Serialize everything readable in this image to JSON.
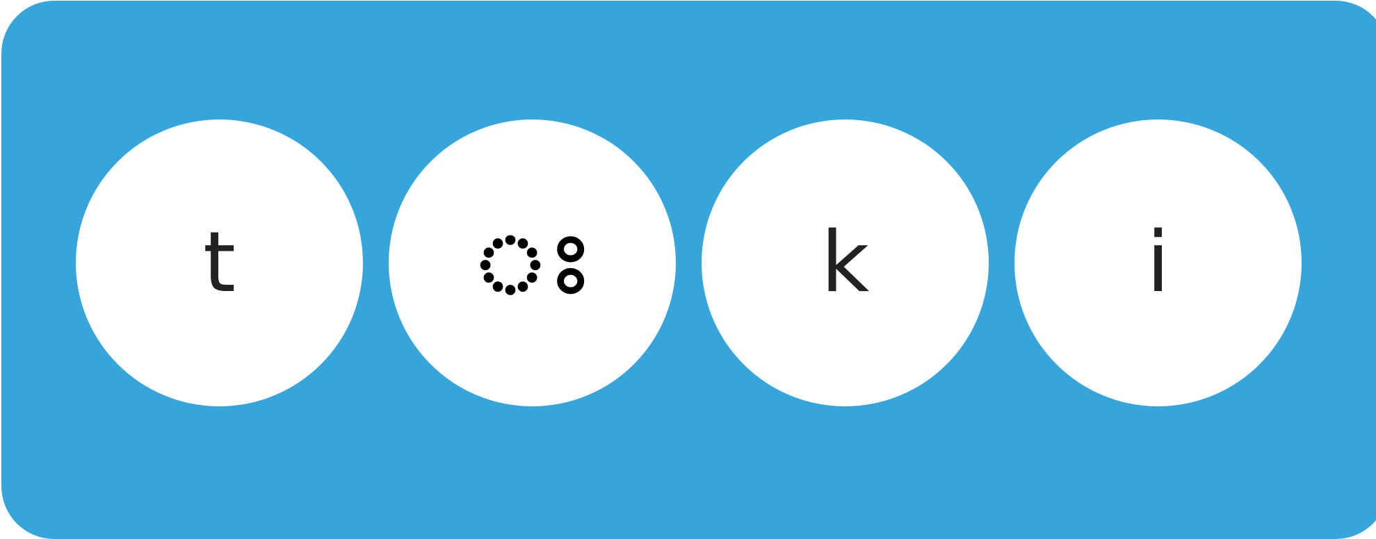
{
  "tiles": [
    {
      "label": "t"
    },
    {
      "label": "ঃ"
    },
    {
      "label": "k"
    },
    {
      "label": "i"
    }
  ],
  "colors": {
    "panel": "#36a5db",
    "tile": "#ffffff",
    "glyph": "#222222"
  }
}
